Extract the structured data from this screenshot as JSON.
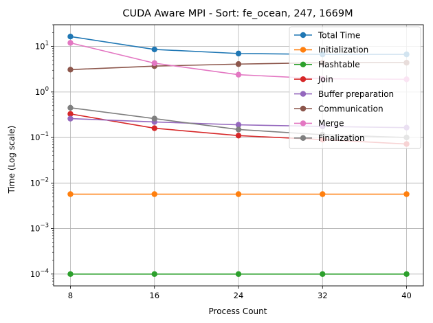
{
  "chart_data": {
    "type": "line",
    "title": "CUDA Aware MPI - Sort: fe_ocean, 247, 1669M",
    "xlabel": "Process Count",
    "ylabel": "Time (Log scale)",
    "y_scale": "log",
    "x": [
      8,
      16,
      24,
      32,
      40
    ],
    "x_ticks": [
      "8",
      "16",
      "24",
      "32",
      "40"
    ],
    "y_ticks": [
      {
        "base": "10",
        "exp": "−4",
        "value": 0.0001
      },
      {
        "base": "10",
        "exp": "−3",
        "value": 0.001
      },
      {
        "base": "10",
        "exp": "−2",
        "value": 0.01
      },
      {
        "base": "10",
        "exp": "−1",
        "value": 0.1
      },
      {
        "base": "10",
        "exp": "0",
        "value": 1
      },
      {
        "base": "10",
        "exp": "1",
        "value": 10
      }
    ],
    "ylim": [
      5.5e-05,
      30
    ],
    "grid": true,
    "legend_position": "top-right",
    "series": [
      {
        "name": "Total Time",
        "color": "#1f77b4",
        "values": [
          16.5,
          8.6,
          7.0,
          6.7,
          6.7
        ]
      },
      {
        "name": "Initialization",
        "color": "#ff7f0e",
        "values": [
          0.0057,
          0.0057,
          0.0057,
          0.0057,
          0.0057
        ]
      },
      {
        "name": "Hashtable",
        "color": "#2ca02c",
        "values": [
          0.0001,
          0.0001,
          0.0001,
          0.0001,
          0.0001
        ]
      },
      {
        "name": "Join",
        "color": "#d62728",
        "values": [
          0.33,
          0.16,
          0.11,
          0.09,
          0.072
        ]
      },
      {
        "name": "Buffer preparation",
        "color": "#9467bd",
        "values": [
          0.26,
          0.22,
          0.19,
          0.175,
          0.165
        ]
      },
      {
        "name": "Communication",
        "color": "#8c564b",
        "values": [
          3.1,
          3.7,
          4.1,
          4.4,
          4.4
        ]
      },
      {
        "name": "Merge",
        "color": "#e377c2",
        "values": [
          12.0,
          4.3,
          2.4,
          1.95,
          1.9
        ]
      },
      {
        "name": "Finalization",
        "color": "#7f7f7f",
        "values": [
          0.45,
          0.26,
          0.15,
          0.115,
          0.1
        ]
      }
    ]
  }
}
